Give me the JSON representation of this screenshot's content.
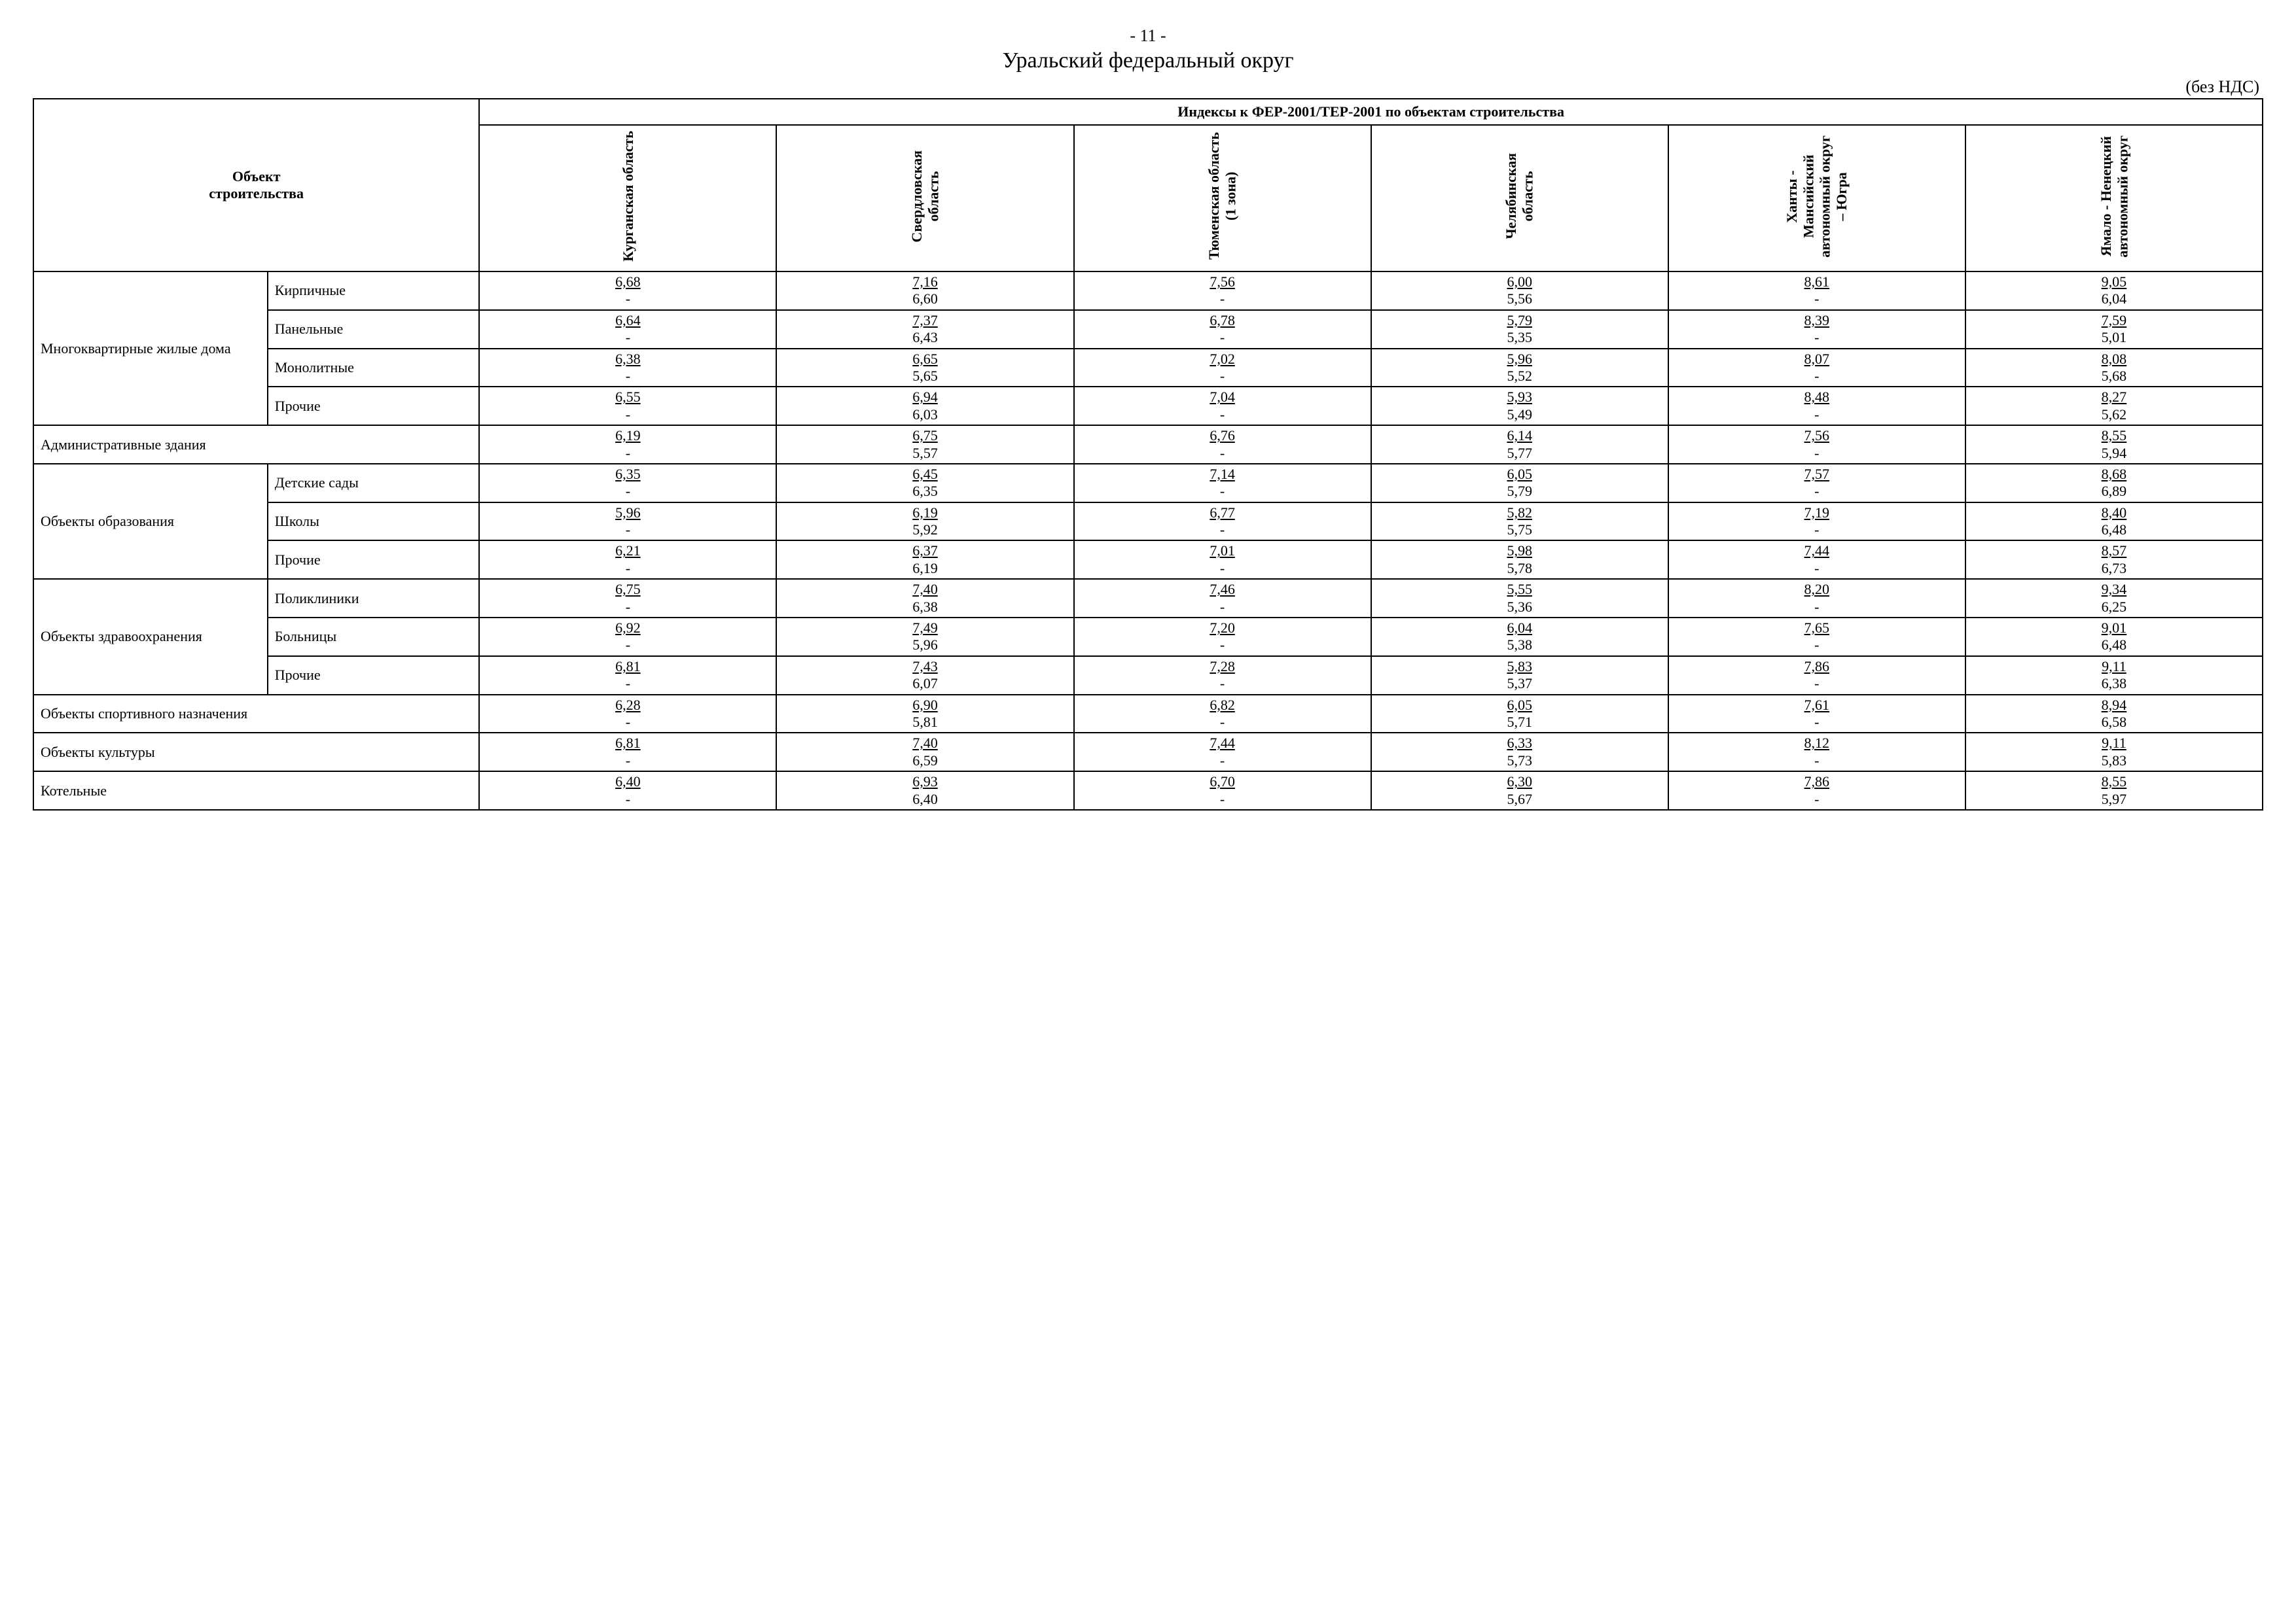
{
  "page_number": "- 11 -",
  "title": "Уральский федеральный округ",
  "vat_note": "(без НДС)",
  "header_object": "Объект\nстроительства",
  "header_indices": "Индексы к ФЕР-2001/ТЕР-2001 по объектам строительства",
  "columns": [
    "Курганская область",
    "Свердловская\nобласть",
    "Тюменская область\n(1 зона)",
    "Челябинская\nобласть",
    "Ханты -\nМансийский\nавтономный округ\n– Югра",
    "Ямало - Ненецкий\nавтономный округ"
  ],
  "sections": [
    {
      "group": "Многоквартирные жилые дома",
      "rows": [
        {
          "label": "Кирпичные",
          "vals": [
            [
              "6,68",
              "-"
            ],
            [
              "7,16",
              "6,60"
            ],
            [
              "7,56",
              "-"
            ],
            [
              "6,00",
              "5,56"
            ],
            [
              "8,61",
              "-"
            ],
            [
              "9,05",
              "6,04"
            ]
          ]
        },
        {
          "label": "Панельные",
          "vals": [
            [
              "6,64",
              "-"
            ],
            [
              "7,37",
              "6,43"
            ],
            [
              "6,78",
              "-"
            ],
            [
              "5,79",
              "5,35"
            ],
            [
              "8,39",
              "-"
            ],
            [
              "7,59",
              "5,01"
            ]
          ]
        },
        {
          "label": "Монолитные",
          "vals": [
            [
              "6,38",
              "-"
            ],
            [
              "6,65",
              "5,65"
            ],
            [
              "7,02",
              "-"
            ],
            [
              "5,96",
              "5,52"
            ],
            [
              "8,07",
              "-"
            ],
            [
              "8,08",
              "5,68"
            ]
          ]
        },
        {
          "label": "Прочие",
          "vals": [
            [
              "6,55",
              "-"
            ],
            [
              "6,94",
              "6,03"
            ],
            [
              "7,04",
              "-"
            ],
            [
              "5,93",
              "5,49"
            ],
            [
              "8,48",
              "-"
            ],
            [
              "8,27",
              "5,62"
            ]
          ]
        }
      ]
    },
    {
      "group": null,
      "rows": [
        {
          "label": "Административные здания",
          "span2": true,
          "vals": [
            [
              "6,19",
              "-"
            ],
            [
              "6,75",
              "5,57"
            ],
            [
              "6,76",
              "-"
            ],
            [
              "6,14",
              "5,77"
            ],
            [
              "7,56",
              "-"
            ],
            [
              "8,55",
              "5,94"
            ]
          ]
        }
      ]
    },
    {
      "group": "Объекты образования",
      "rows": [
        {
          "label": "Детские сады",
          "vals": [
            [
              "6,35",
              "-"
            ],
            [
              "6,45",
              "6,35"
            ],
            [
              "7,14",
              "-"
            ],
            [
              "6,05",
              "5,79"
            ],
            [
              "7,57",
              "-"
            ],
            [
              "8,68",
              "6,89"
            ]
          ]
        },
        {
          "label": "Школы",
          "vals": [
            [
              "5,96",
              "-"
            ],
            [
              "6,19",
              "5,92"
            ],
            [
              "6,77",
              "-"
            ],
            [
              "5,82",
              "5,75"
            ],
            [
              "7,19",
              "-"
            ],
            [
              "8,40",
              "6,48"
            ]
          ]
        },
        {
          "label": "Прочие",
          "vals": [
            [
              "6,21",
              "-"
            ],
            [
              "6,37",
              "6,19"
            ],
            [
              "7,01",
              "-"
            ],
            [
              "5,98",
              "5,78"
            ],
            [
              "7,44",
              "-"
            ],
            [
              "8,57",
              "6,73"
            ]
          ]
        }
      ]
    },
    {
      "group": "Объекты здравоохранения",
      "rows": [
        {
          "label": "Поликлиники",
          "vals": [
            [
              "6,75",
              "-"
            ],
            [
              "7,40",
              "6,38"
            ],
            [
              "7,46",
              "-"
            ],
            [
              "5,55",
              "5,36"
            ],
            [
              "8,20",
              "-"
            ],
            [
              "9,34",
              "6,25"
            ]
          ]
        },
        {
          "label": "Больницы",
          "vals": [
            [
              "6,92",
              "-"
            ],
            [
              "7,49",
              "5,96"
            ],
            [
              "7,20",
              "-"
            ],
            [
              "6,04",
              "5,38"
            ],
            [
              "7,65",
              "-"
            ],
            [
              "9,01",
              "6,48"
            ]
          ]
        },
        {
          "label": "Прочие",
          "vals": [
            [
              "6,81",
              "-"
            ],
            [
              "7,43",
              "6,07"
            ],
            [
              "7,28",
              "-"
            ],
            [
              "5,83",
              "5,37"
            ],
            [
              "7,86",
              "-"
            ],
            [
              "9,11",
              "6,38"
            ]
          ]
        }
      ]
    },
    {
      "group": null,
      "rows": [
        {
          "label": "Объекты спортивного назначения",
          "span2": true,
          "vals": [
            [
              "6,28",
              "-"
            ],
            [
              "6,90",
              "5,81"
            ],
            [
              "6,82",
              "-"
            ],
            [
              "6,05",
              "5,71"
            ],
            [
              "7,61",
              "-"
            ],
            [
              "8,94",
              "6,58"
            ]
          ]
        }
      ]
    },
    {
      "group": null,
      "rows": [
        {
          "label": "Объекты культуры",
          "span2": true,
          "vals": [
            [
              "6,81",
              "-"
            ],
            [
              "7,40",
              "6,59"
            ],
            [
              "7,44",
              "-"
            ],
            [
              "6,33",
              "5,73"
            ],
            [
              "8,12",
              "-"
            ],
            [
              "9,11",
              "5,83"
            ]
          ]
        }
      ]
    },
    {
      "group": null,
      "rows": [
        {
          "label": "Котельные",
          "span2": true,
          "vals": [
            [
              "6,40",
              "-"
            ],
            [
              "6,93",
              "6,40"
            ],
            [
              "6,70",
              "-"
            ],
            [
              "6,30",
              "5,67"
            ],
            [
              "7,86",
              "-"
            ],
            [
              "8,55",
              "5,97"
            ]
          ]
        }
      ]
    }
  ],
  "style": {
    "background_color": "#ffffff",
    "text_color": "#000000",
    "border_color": "#000000",
    "font_family": "Times New Roman",
    "title_fontsize_pt": 26,
    "body_fontsize_pt": 17
  }
}
